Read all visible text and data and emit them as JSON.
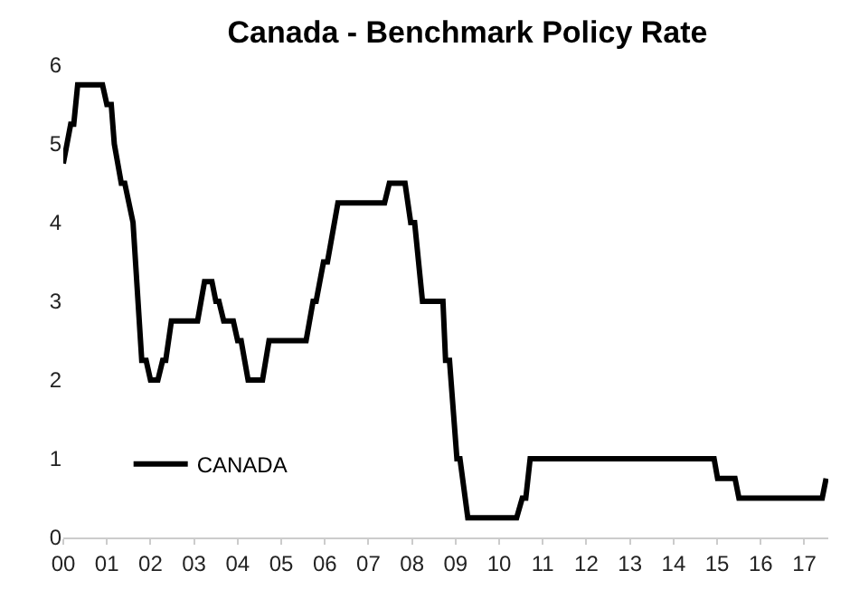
{
  "chart_data": {
    "type": "line",
    "title": "Canada - Benchmark Policy Rate",
    "xlim": [
      2000,
      2017.55
    ],
    "xticks": [
      {
        "value": 2000,
        "label": "00"
      },
      {
        "value": 2001,
        "label": "01"
      },
      {
        "value": 2002,
        "label": "02"
      },
      {
        "value": 2003,
        "label": "03"
      },
      {
        "value": 2004,
        "label": "04"
      },
      {
        "value": 2005,
        "label": "05"
      },
      {
        "value": 2006,
        "label": "06"
      },
      {
        "value": 2007,
        "label": "07"
      },
      {
        "value": 2008,
        "label": "08"
      },
      {
        "value": 2009,
        "label": "09"
      },
      {
        "value": 2010,
        "label": "10"
      },
      {
        "value": 2011,
        "label": "11"
      },
      {
        "value": 2012,
        "label": "12"
      },
      {
        "value": 2013,
        "label": "13"
      },
      {
        "value": 2014,
        "label": "14"
      },
      {
        "value": 2015,
        "label": "15"
      },
      {
        "value": 2016,
        "label": "16"
      },
      {
        "value": 2017,
        "label": "17"
      }
    ],
    "ylim": [
      0,
      6
    ],
    "yticks": [
      0,
      1,
      2,
      3,
      4,
      5,
      6
    ],
    "legend": "bottom left",
    "line_style": "solid",
    "series": [
      {
        "name": "CANADA",
        "color": "#000000",
        "x": [
          2000.0,
          2000.17,
          2000.24,
          2000.33,
          2000.9,
          2001.0,
          2001.1,
          2001.17,
          2001.33,
          2001.41,
          2001.6,
          2001.8,
          2001.9,
          2002.0,
          2002.17,
          2002.28,
          2002.35,
          2002.48,
          2003.08,
          2003.24,
          2003.41,
          2003.5,
          2003.57,
          2003.68,
          2003.9,
          2004.0,
          2004.08,
          2004.24,
          2004.57,
          2004.72,
          2005.57,
          2005.73,
          2005.8,
          2005.97,
          2006.06,
          2006.3,
          2007.37,
          2007.48,
          2007.84,
          2007.97,
          2008.06,
          2008.24,
          2008.71,
          2008.77,
          2008.86,
          2009.03,
          2009.1,
          2009.28,
          2010.4,
          2010.53,
          2010.61,
          2010.71,
          2014.93,
          2015.01,
          2015.41,
          2015.5,
          2017.41,
          2017.5
        ],
        "values": [
          4.75,
          5.25,
          5.25,
          5.75,
          5.75,
          5.5,
          5.5,
          5.0,
          4.5,
          4.5,
          4.0,
          2.25,
          2.25,
          2.0,
          2.0,
          2.25,
          2.25,
          2.75,
          2.75,
          3.25,
          3.25,
          3.0,
          3.0,
          2.75,
          2.75,
          2.5,
          2.5,
          2.0,
          2.0,
          2.5,
          2.5,
          3.0,
          3.0,
          3.5,
          3.5,
          4.25,
          4.25,
          4.5,
          4.5,
          4.0,
          4.0,
          3.0,
          3.0,
          2.25,
          2.25,
          1.0,
          1.0,
          0.25,
          0.25,
          0.5,
          0.5,
          1.0,
          1.0,
          0.75,
          0.75,
          0.5,
          0.5,
          0.75
        ]
      }
    ]
  }
}
